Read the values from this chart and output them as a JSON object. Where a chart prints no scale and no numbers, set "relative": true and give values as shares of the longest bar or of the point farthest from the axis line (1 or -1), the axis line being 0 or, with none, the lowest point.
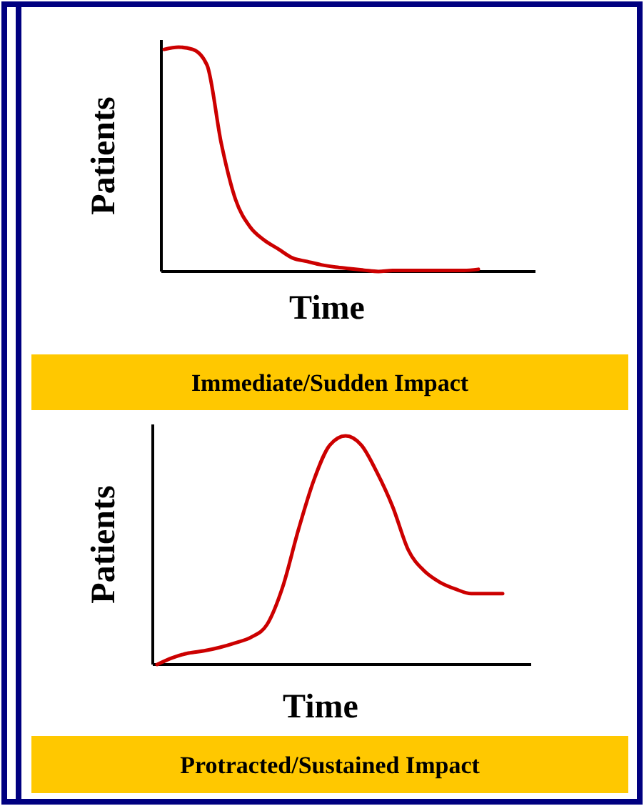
{
  "chart_data": [
    {
      "type": "line",
      "title": "Immediate/Sudden Impact",
      "xlabel": "Time",
      "ylabel": "Patients",
      "relative": true,
      "color": "#cc0000",
      "categories": [
        null,
        null,
        null,
        null,
        null,
        null,
        null,
        null,
        null,
        null,
        null,
        null,
        null,
        null,
        null,
        null,
        null,
        null,
        null,
        null,
        null,
        null,
        null
      ],
      "values": [
        0.99,
        1.0,
        0.99,
        0.92,
        0.57,
        0.32,
        0.2,
        0.14,
        0.1,
        0.06,
        0.045,
        0.03,
        0.02,
        0.013,
        0.006,
        0,
        0.005,
        0.005,
        0.005,
        0.005,
        0.005,
        0.005,
        0.01
      ]
    },
    {
      "type": "line",
      "title": "Protracted/Sustained Impact",
      "xlabel": "Time",
      "ylabel": "Patients",
      "relative": true,
      "color": "#cc0000",
      "categories": [
        null,
        null,
        null,
        null,
        null,
        null,
        null,
        null,
        null,
        null,
        null,
        null,
        null,
        null,
        null,
        null,
        null,
        null,
        null,
        null,
        null,
        null,
        null
      ],
      "values": [
        0,
        0.03,
        0.05,
        0.06,
        0.075,
        0.095,
        0.12,
        0.175,
        0.34,
        0.59,
        0.81,
        0.96,
        1.0,
        0.96,
        0.84,
        0.69,
        0.5,
        0.41,
        0.36,
        0.33,
        0.31,
        0.31,
        0.31
      ]
    }
  ]
}
